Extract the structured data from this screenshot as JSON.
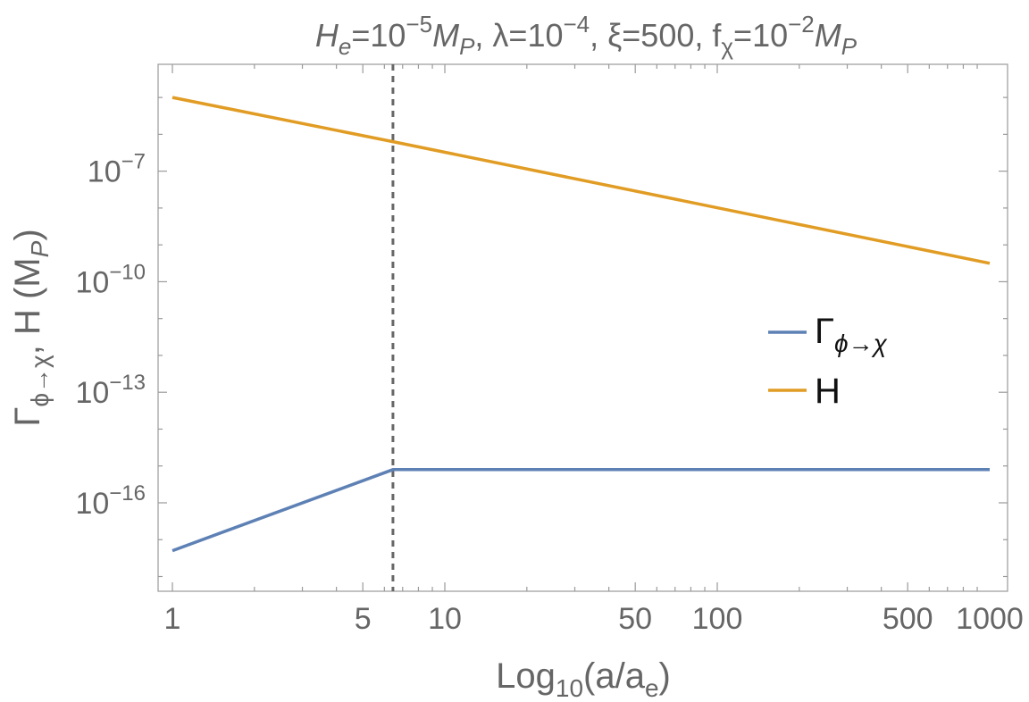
{
  "chart_data": {
    "type": "line",
    "title": {
      "He": "H",
      "He_sub": "e",
      "He_eq": "=10",
      "He_exp": "−5",
      "He_unit": "M",
      "He_unit_sub": "P",
      "lambda": ", λ=10",
      "lambda_exp": "−4",
      "xi": ", ξ=500",
      "f": ", f",
      "f_sub": "χ",
      "f_eq": "=10",
      "f_exp": "−2",
      "f_unit": "M",
      "f_unit_sub": "P"
    },
    "xlabel": {
      "main": "Log",
      "sub": "10",
      "rest": "(a/a",
      "rest_sub": "e",
      "close": ")"
    },
    "ylabel": {
      "gamma": "Γ",
      "gamma_sub": "ϕ→χ",
      "rest": ", H (M",
      "rest_sub": "P",
      "close": ")"
    },
    "x_scale": "log",
    "y_scale": "log",
    "xlim": [
      1,
      1000
    ],
    "ylim_log10": [
      -18.4,
      -4.1
    ],
    "x_ticks": [
      {
        "value": 1,
        "label": "1"
      },
      {
        "value": 5,
        "label": "5"
      },
      {
        "value": 10,
        "label": "10"
      },
      {
        "value": 50,
        "label": "50"
      },
      {
        "value": 100,
        "label": "100"
      },
      {
        "value": 500,
        "label": "500"
      },
      {
        "value": 1000,
        "label": "1000"
      }
    ],
    "y_ticks": [
      {
        "log10": -7,
        "base": "10",
        "exp": "−7"
      },
      {
        "log10": -10,
        "base": "10",
        "exp": "−10"
      },
      {
        "log10": -13,
        "base": "10",
        "exp": "−13"
      },
      {
        "log10": -16,
        "base": "10",
        "exp": "−16"
      }
    ],
    "vline": {
      "x": 6.45,
      "style": "dashed",
      "color": "#666666"
    },
    "series": [
      {
        "name": "Γ",
        "name_sub": "ϕ→χ",
        "color": "#5e81b5",
        "points": [
          {
            "x": 1,
            "log10y": -17.3
          },
          {
            "x": 6.45,
            "log10y": -15.1
          },
          {
            "x": 1000,
            "log10y": -15.1
          }
        ]
      },
      {
        "name": "H",
        "name_sub": "",
        "color": "#e19c24",
        "points": [
          {
            "x": 1,
            "log10y": -5.0
          },
          {
            "x": 6.45,
            "log10y": -6.2
          },
          {
            "x": 1000,
            "log10y": -9.5
          }
        ]
      }
    ],
    "legend": {
      "position": "center-right"
    },
    "grid": false
  }
}
